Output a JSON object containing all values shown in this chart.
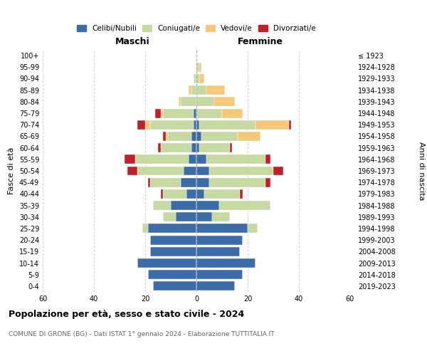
{
  "age_groups": [
    "100+",
    "95-99",
    "90-94",
    "85-89",
    "80-84",
    "75-79",
    "70-74",
    "65-69",
    "60-64",
    "55-59",
    "50-54",
    "45-49",
    "40-44",
    "35-39",
    "30-34",
    "25-29",
    "20-24",
    "15-19",
    "10-14",
    "5-9",
    "0-4"
  ],
  "birth_years": [
    "≤ 1923",
    "1924-1928",
    "1929-1933",
    "1934-1938",
    "1939-1943",
    "1944-1948",
    "1949-1953",
    "1954-1958",
    "1959-1963",
    "1964-1968",
    "1969-1973",
    "1974-1978",
    "1979-1983",
    "1984-1988",
    "1989-1993",
    "1994-1998",
    "1999-2003",
    "2004-2008",
    "2009-2013",
    "2014-2018",
    "2019-2023"
  ],
  "colors": {
    "celibi": "#3b6ca8",
    "coniugati": "#c5d9a0",
    "vedovi": "#f5c97a",
    "divorziati": "#c0202a"
  },
  "maschi": {
    "celibi": [
      0,
      0,
      0,
      0,
      0,
      1,
      1,
      2,
      2,
      3,
      5,
      6,
      4,
      10,
      8,
      19,
      18,
      18,
      23,
      19,
      17
    ],
    "coniugati": [
      0,
      0,
      1,
      2,
      6,
      12,
      17,
      9,
      12,
      21,
      18,
      12,
      9,
      7,
      5,
      2,
      0,
      0,
      0,
      0,
      0
    ],
    "vedovi": [
      0,
      0,
      0,
      1,
      1,
      1,
      2,
      1,
      0,
      0,
      0,
      0,
      0,
      0,
      0,
      0,
      0,
      0,
      0,
      0,
      0
    ],
    "divorziati": [
      0,
      0,
      0,
      0,
      0,
      2,
      3,
      1,
      1,
      4,
      4,
      1,
      1,
      0,
      0,
      0,
      0,
      0,
      0,
      0,
      0
    ]
  },
  "femmine": {
    "celibi": [
      0,
      0,
      0,
      0,
      0,
      0,
      1,
      2,
      1,
      4,
      5,
      5,
      3,
      9,
      6,
      20,
      18,
      17,
      23,
      18,
      15
    ],
    "coniugati": [
      0,
      1,
      1,
      4,
      7,
      10,
      22,
      14,
      12,
      23,
      25,
      22,
      14,
      20,
      7,
      4,
      0,
      0,
      0,
      0,
      0
    ],
    "vedovi": [
      0,
      1,
      2,
      7,
      8,
      8,
      13,
      9,
      0,
      0,
      0,
      0,
      0,
      0,
      0,
      0,
      0,
      0,
      0,
      0,
      0
    ],
    "divorziati": [
      0,
      0,
      0,
      0,
      0,
      0,
      1,
      0,
      1,
      2,
      4,
      2,
      1,
      0,
      0,
      0,
      0,
      0,
      0,
      0,
      0
    ]
  },
  "xlim": 60,
  "title": "Popolazione per età, sesso e stato civile - 2024",
  "subtitle": "COMUNE DI GRONE (BG) - Dati ISTAT 1° gennaio 2024 - Elaborazione TUTTITALIA.IT",
  "ylabel_left": "Fasce di età",
  "ylabel_right": "Anni di nascita",
  "xlabel_left": "Maschi",
  "xlabel_right": "Femmine"
}
